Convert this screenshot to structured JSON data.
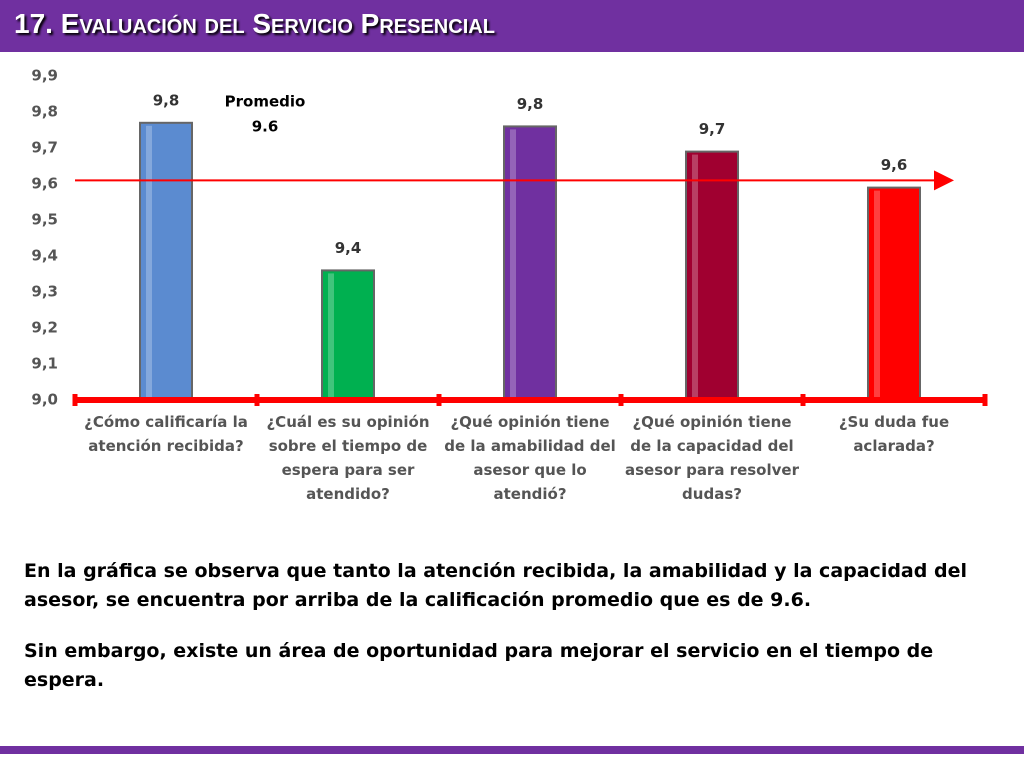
{
  "header": {
    "title": "17. Evaluación del Servicio Presencial"
  },
  "chart_data": {
    "type": "bar",
    "categories": [
      "¿Cómo calificaría la atención recibida?",
      "¿Cuál es su opinión sobre el tiempo de espera para ser atendido?",
      "¿Qué opinión tiene de la amabilidad del asesor que lo atendió?",
      "¿Qué opinión tiene de la capacidad del asesor para resolver dudas?",
      "¿Su duda fue aclarada?"
    ],
    "values": [
      9.77,
      9.36,
      9.76,
      9.69,
      9.59
    ],
    "value_labels": [
      "9,8",
      "9,4",
      "9,8",
      "9,7",
      "9,6"
    ],
    "colors": [
      "#5b8bd0",
      "#00b050",
      "#7030a0",
      "#a00030",
      "#ff0000"
    ],
    "ylim": [
      9.0,
      9.9
    ],
    "yticks": [
      {
        "value": 9.0,
        "label": "9,0"
      },
      {
        "value": 9.1,
        "label": "9,1"
      },
      {
        "value": 9.2,
        "label": "9,2"
      },
      {
        "value": 9.3,
        "label": "9,3"
      },
      {
        "value": 9.4,
        "label": "9,4"
      },
      {
        "value": 9.5,
        "label": "9,5"
      },
      {
        "value": 9.6,
        "label": "9,6"
      },
      {
        "value": 9.7,
        "label": "9,7"
      },
      {
        "value": 9.8,
        "label": "9,8"
      },
      {
        "value": 9.9,
        "label": "9,9"
      }
    ],
    "average_line": {
      "value": 9.61,
      "color": "#ff0000",
      "label": [
        "Promedio",
        "9.6"
      ]
    }
  },
  "text": {
    "paragraphs": [
      "En la gráfica se observa que tanto la atención recibida, la amabilidad y la capacidad del asesor, se encuentra por arriba de la calificación promedio que es de 9.6.",
      "Sin embargo, existe un área de oportunidad para mejorar el servicio en el tiempo de espera."
    ]
  }
}
